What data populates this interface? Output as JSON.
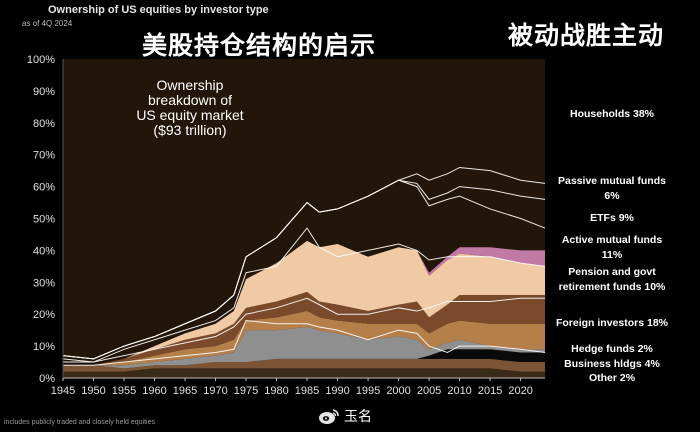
{
  "header": {
    "title": "Ownership of US equities by investor type",
    "subtitle": "as of 4Q 2024"
  },
  "overlay": {
    "title_cn": "美股持仓结构的启示",
    "corner_cn": "被动战胜主动"
  },
  "footnote": "includes publicly traded and closely held equities",
  "watermark": {
    "text": "玉名",
    "icon": "weibo-icon"
  },
  "colors": {
    "background": "#000000",
    "plot_background": "#221509"
  },
  "chart_data": {
    "type": "area",
    "stacked": true,
    "annotation": [
      "Ownership",
      "breakdown  of",
      "US equity market",
      "($93 trillion)"
    ],
    "x_ticks": [
      1945,
      1950,
      1955,
      1960,
      1965,
      1970,
      1975,
      1980,
      1985,
      1990,
      1995,
      2000,
      2005,
      2010,
      2015,
      2020
    ],
    "y_ticks": [
      "0%",
      "10%",
      "20%",
      "30%",
      "40%",
      "50%",
      "60%",
      "70%",
      "80%",
      "90%",
      "100%"
    ],
    "xlim": [
      1945,
      2024
    ],
    "ylim": [
      0,
      100
    ],
    "x": [
      1945,
      1950,
      1955,
      1960,
      1965,
      1970,
      1973,
      1975,
      1980,
      1985,
      1987,
      1990,
      1995,
      2000,
      2003,
      2005,
      2008,
      2010,
      2015,
      2020,
      2024
    ],
    "series": [
      {
        "name": "Other 2%",
        "color": "#3a2a18",
        "values": [
          2,
          2,
          2,
          3,
          3,
          3,
          3,
          3,
          3,
          3,
          3,
          3,
          3,
          3,
          3,
          3,
          3,
          3,
          3,
          2,
          2
        ]
      },
      {
        "name": "Business hldgs 4%",
        "color": "#7b5535",
        "values": [
          2,
          2,
          1,
          1,
          1,
          2,
          2,
          2,
          3,
          3,
          3,
          3,
          3,
          3,
          3,
          3,
          3,
          3,
          3,
          3,
          3
        ]
      },
      {
        "name": "Hedge funds 2%",
        "color": "#0a0a0a",
        "values": [
          0,
          0,
          0,
          0,
          0,
          0,
          0,
          0,
          0,
          0,
          0,
          0,
          0,
          0,
          0,
          1,
          3,
          3,
          3,
          3,
          3
        ]
      },
      {
        "name": "Foreign investors 18%",
        "color": "#8f8f8f",
        "values": [
          0,
          0,
          1,
          1,
          2,
          2,
          3,
          10,
          9,
          10,
          9,
          8,
          6,
          7,
          6,
          2,
          2,
          3,
          1,
          1,
          1
        ]
      },
      {
        "name": "Pension and govt retirement funds 10%",
        "color": "#b57f49",
        "values": [
          0,
          0,
          1,
          2,
          3,
          3,
          4,
          3,
          4,
          5,
          4,
          4,
          5,
          4,
          5,
          5,
          6,
          6,
          7,
          8,
          8
        ]
      },
      {
        "name": "Active mutual funds 11%",
        "color": "#7a4a2a",
        "values": [
          0,
          0,
          1,
          2,
          3,
          4,
          5,
          4,
          5,
          6,
          5,
          5,
          4,
          6,
          7,
          5,
          6,
          8,
          9,
          9,
          9
        ]
      },
      {
        "name": "ETFs 9%",
        "color": "#f0c9a5",
        "values": [
          0,
          0,
          0,
          1,
          2,
          3,
          4,
          9,
          12,
          16,
          17,
          19,
          17,
          18,
          16,
          13,
          14,
          13,
          12,
          10,
          9
        ]
      },
      {
        "name": "Passive mutual funds 6%",
        "color": "#d9d9d9",
        "values": [
          0,
          0,
          0,
          0,
          0,
          0,
          0,
          0,
          0,
          0,
          0,
          0,
          0,
          0,
          0,
          0,
          0,
          0,
          0,
          0,
          0
        ]
      },
      {
        "name": "Households 38%",
        "color": "#c17aa6",
        "values": [
          0,
          0,
          0,
          0,
          0,
          0,
          0,
          0,
          0,
          0,
          0,
          0,
          0,
          0,
          0,
          1,
          1,
          2,
          3,
          4,
          5
        ]
      }
    ],
    "boundaries": [
      {
        "years": [
          1945,
          1950,
          1955,
          1960,
          1965,
          1970,
          1973,
          1975,
          1980,
          1985,
          1987,
          1990,
          1995,
          2000,
          2003,
          2005,
          2008,
          2010,
          2015,
          2020,
          2024
        ],
        "values": [
          4,
          4,
          5,
          6,
          7,
          8,
          9,
          18,
          17,
          17,
          16,
          15,
          12,
          15,
          14,
          10,
          8,
          10,
          10,
          9,
          8
        ]
      },
      {
        "years": [
          1945,
          1950,
          1955,
          1960,
          1965,
          1970,
          1973,
          1975,
          1980,
          1985,
          1987,
          1990,
          1995,
          2000,
          2003,
          2005,
          2008,
          2010,
          2015,
          2020,
          2024
        ],
        "values": [
          5,
          5,
          7,
          9,
          11,
          13,
          16,
          20,
          22,
          25,
          23,
          20,
          20,
          22,
          21,
          22,
          24,
          24,
          24,
          25,
          25
        ]
      },
      {
        "years": [
          1945,
          1950,
          1955,
          1960,
          1965,
          1970,
          1973,
          1975,
          1980,
          1985,
          1987,
          1990,
          1995,
          2000,
          2003,
          2005,
          2008,
          2010,
          2015,
          2020,
          2024
        ],
        "values": [
          6,
          5,
          9,
          12,
          15,
          18,
          22,
          33,
          35,
          47,
          41,
          38,
          40,
          42,
          40,
          37,
          38,
          38,
          38,
          36,
          35
        ]
      },
      {
        "years": [
          1945,
          1950,
          1955,
          1960,
          1965,
          1970,
          1973,
          1975,
          1980,
          1985,
          1987,
          1990,
          1995,
          2000,
          2003,
          2005,
          2008,
          2010,
          2015,
          2020,
          2024
        ],
        "values": [
          7,
          6,
          10,
          13,
          17,
          21,
          26,
          38,
          44,
          55,
          52,
          53,
          57,
          62,
          60,
          54,
          56,
          57,
          53,
          50,
          47
        ]
      },
      {
        "years": [
          1945,
          1950,
          1955,
          1960,
          1965,
          1970,
          1973,
          1975,
          1980,
          1985,
          1987,
          1990,
          1995,
          2000,
          2003,
          2005,
          2008,
          2010,
          2015,
          2020,
          2024
        ],
        "values": [
          7,
          6,
          10,
          13,
          17,
          21,
          26,
          38,
          44,
          55,
          52,
          53,
          57,
          62,
          61,
          56,
          58,
          60,
          59,
          57,
          56
        ]
      },
      {
        "years": [
          1945,
          1950,
          1955,
          1960,
          1965,
          1970,
          1973,
          1975,
          1980,
          1985,
          1987,
          1990,
          1995,
          2000,
          2003,
          2005,
          2008,
          2010,
          2015,
          2020,
          2024
        ],
        "values": [
          7,
          6,
          10,
          13,
          17,
          21,
          26,
          38,
          44,
          55,
          52,
          53,
          57,
          62,
          64,
          62,
          64,
          66,
          65,
          62,
          61
        ]
      }
    ]
  }
}
